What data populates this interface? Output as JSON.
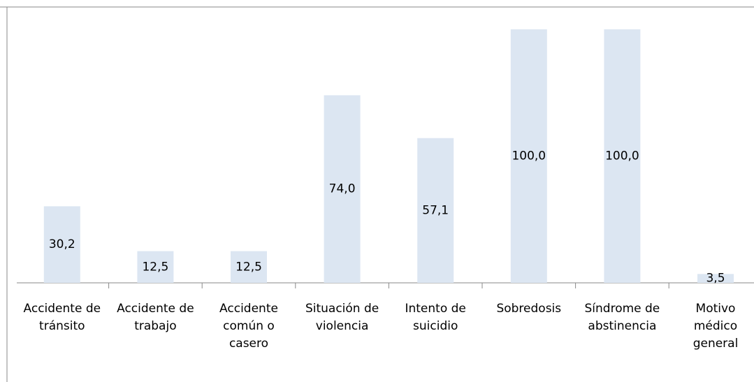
{
  "chart_data": {
    "type": "bar",
    "categories": [
      "Accidente de tránsito",
      "Accidente de trabajo",
      "Accidente común o casero",
      "Situación de violencia",
      "Intento de suicidio",
      "Sobredosis",
      "Síndrome de abstinencia",
      "Motivo médico general"
    ],
    "values": [
      30.2,
      12.5,
      12.5,
      74.0,
      57.1,
      100.0,
      100.0,
      3.5
    ],
    "value_labels": [
      "30,2",
      "12,5",
      "12,5",
      "74,0",
      "57,1",
      "100,0",
      "100,0",
      "3,5"
    ],
    "color": "#dce6f2"
  }
}
